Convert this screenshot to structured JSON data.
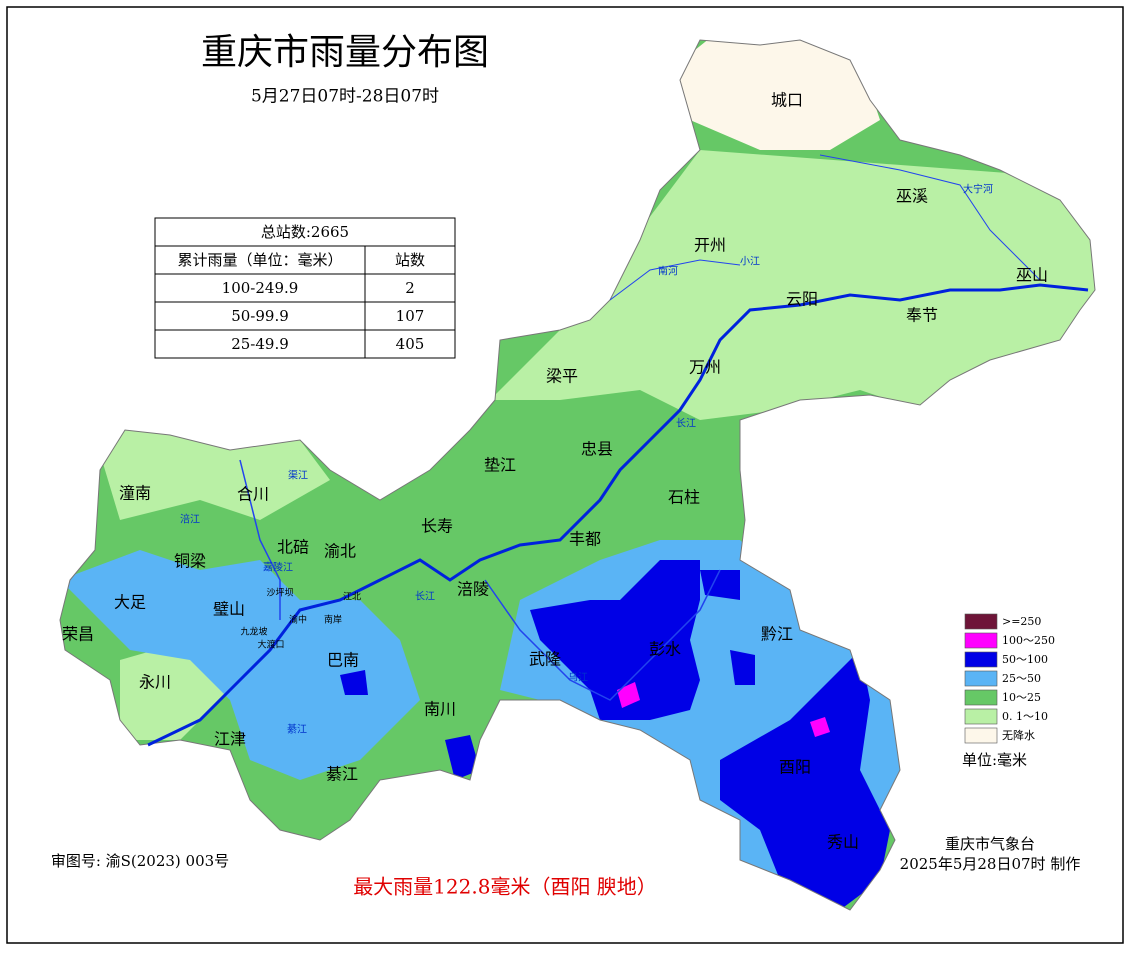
{
  "header": {
    "title": "重庆市雨量分布图",
    "subtitle": "5月27日07时-28日07时"
  },
  "stats_table": {
    "caption": "总站数:2665",
    "columns": [
      "累计雨量（单位：毫米）",
      "站数"
    ],
    "rows": [
      [
        "100-249.9",
        "2"
      ],
      [
        "50-99.9",
        "107"
      ],
      [
        "25-49.9",
        "405"
      ]
    ]
  },
  "legend": {
    "items": [
      {
        "label": ">=250",
        "color": "#6e1438"
      },
      {
        "label": "100～250",
        "color": "#ff00ff"
      },
      {
        "label": "50～100",
        "color": "#0000e6"
      },
      {
        "label": "25～50",
        "color": "#5ab4f5"
      },
      {
        "label": "10～25",
        "color": "#66c866"
      },
      {
        "label": "0. 1～10",
        "color": "#b9f0a5"
      },
      {
        "label": "无降水",
        "color": "#fdf7ea"
      }
    ],
    "unit": "单位:毫米"
  },
  "places": [
    "城口",
    "巫溪",
    "开州",
    "巫山",
    "云阳",
    "奉节",
    "梁平",
    "万州",
    "忠县",
    "垫江",
    "石柱",
    "潼南",
    "合川",
    "长寿",
    "丰都",
    "铜梁",
    "北碚",
    "渝北",
    "涪陵",
    "大足",
    "璧山",
    "荣昌",
    "黔江",
    "巴南",
    "武隆",
    "彭水",
    "永川",
    "南川",
    "酉阳",
    "江津",
    "綦江",
    "秀山"
  ],
  "minor_places": [
    "沙坪坝",
    "九龙坡",
    "大渡口",
    "南岸",
    "江北",
    "渝中"
  ],
  "rivers": [
    "长江",
    "长江",
    "嘉陵江",
    "乌江",
    "涪江",
    "渠江",
    "綦江",
    "南河",
    "小江",
    "大宁河"
  ],
  "footer": {
    "approval": "审图号: 渝S(2023) 003号",
    "max_rain": "最大雨量122.8毫米（酉阳 腴地）",
    "issuer": "重庆市气象台",
    "issued": "2025年5月28日07时 制作"
  }
}
